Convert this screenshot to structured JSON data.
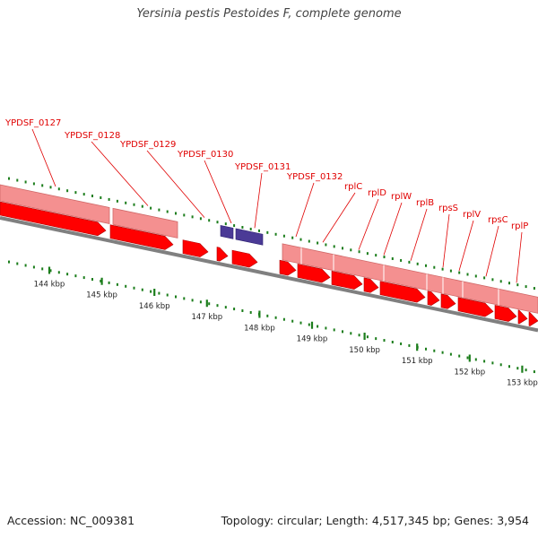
{
  "title": "Yersinia pestis Pestoides F, complete genome",
  "accession_line": "Accession: NC_009381",
  "summary_line": "Topology: circular; Length: 4,517,345 bp; Genes: 3,954",
  "colors": {
    "cds": "#ff0000",
    "gene_band": "#f49090",
    "rna": "#4b3a96",
    "backbone": "#808080",
    "tick": "#1b7d1b",
    "label": "#e00000"
  },
  "gene_labels": [
    "YPDSF_0127",
    "YPDSF_0128",
    "YPDSF_0129",
    "YPDSF_0130",
    "YPDSF_0131",
    "YPDSF_0132",
    "rplC",
    "rplD",
    "rplW",
    "rplB",
    "rpsS",
    "rplV",
    "rpsC",
    "rplP"
  ],
  "kbp_labels": [
    "144 kbp",
    "145 kbp",
    "146 kbp",
    "147 kbp",
    "148 kbp",
    "149 kbp",
    "150 kbp",
    "151 kbp",
    "152 kbp",
    "153 kbp"
  ]
}
